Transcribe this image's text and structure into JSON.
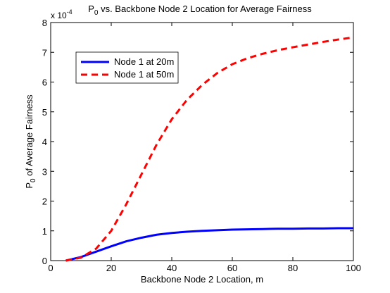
{
  "chart_data": {
    "type": "line",
    "title": {
      "prefix": "P",
      "subscript": "0",
      "suffix": " vs. Backbone Node 2 Location for Average Fairness"
    },
    "xlabel": "Backbone Node 2 Location, m",
    "ylabel": {
      "prefix": "P",
      "subscript": "0",
      "suffix": " of Average Fairness"
    },
    "y_multiplier": {
      "base": "x 10",
      "exponent": "-4"
    },
    "xlim": [
      0,
      100
    ],
    "ylim": [
      0,
      8
    ],
    "x_ticks": [
      "0",
      "20",
      "40",
      "60",
      "80",
      "100"
    ],
    "y_ticks": [
      "0",
      "1",
      "2",
      "3",
      "4",
      "5",
      "6",
      "7",
      "8"
    ],
    "grid": false,
    "legend_position": "top-left",
    "x": [
      5,
      10,
      15,
      20,
      25,
      30,
      35,
      40,
      45,
      50,
      55,
      60,
      65,
      70,
      75,
      80,
      85,
      90,
      95,
      100
    ],
    "series": [
      {
        "name": "Node 1 at 20m",
        "color": "#0000ff",
        "style": "solid",
        "values": [
          0.0,
          0.12,
          0.3,
          0.48,
          0.65,
          0.77,
          0.87,
          0.93,
          0.97,
          1.0,
          1.02,
          1.04,
          1.05,
          1.06,
          1.07,
          1.07,
          1.08,
          1.08,
          1.09,
          1.09
        ]
      },
      {
        "name": "Node 1 at 50m",
        "color": "#ff0000",
        "style": "dashed",
        "values": [
          0.0,
          0.1,
          0.4,
          1.0,
          1.9,
          2.9,
          3.9,
          4.75,
          5.4,
          5.9,
          6.3,
          6.6,
          6.8,
          6.95,
          7.07,
          7.17,
          7.26,
          7.35,
          7.43,
          7.5
        ]
      }
    ]
  }
}
